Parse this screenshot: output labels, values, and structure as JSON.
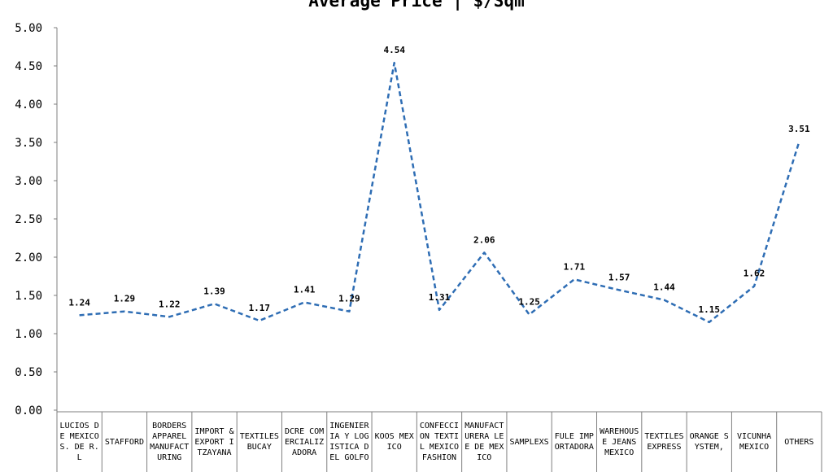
{
  "chart_data": {
    "type": "line",
    "title": "Average Price | $/Sqm",
    "xlabel": "",
    "ylabel": "",
    "ylim": [
      0,
      5
    ],
    "yticks": [
      "0.00",
      "0.50",
      "1.00",
      "1.50",
      "2.00",
      "2.50",
      "3.00",
      "3.50",
      "4.00",
      "4.50",
      "5.00"
    ],
    "grid": false,
    "legend": "none",
    "line_color": "#2e6db4",
    "line_style": "dashed",
    "categories": [
      "LUCIOS DE MEXICO S. DE R.L",
      "STAFFORD",
      "BORDERS APPAREL MANUFACTURING",
      "IMPORT & EXPORT ITZAYANA",
      "TEXTILES BUCAY",
      "DCRE COMERCIALIZADORA",
      "INGENIERIA Y LOGISTICA DEL GOLFO",
      "KOOS MEXICO",
      "CONFECCION TEXTIL MEXICO FASHION",
      "MANUFACTURERA LEE DE MEXICO",
      "SAMPLEXS",
      "FULE IMPORTADORA",
      "WAREHOUSE JEANS MEXICO",
      "TEXTILES EXPRESS",
      "ORANGE SYSTEM,",
      "VICUNHA MEXICO",
      "OTHERS"
    ],
    "values": [
      1.24,
      1.29,
      1.22,
      1.39,
      1.17,
      1.41,
      1.29,
      4.54,
      1.31,
      2.06,
      1.25,
      1.71,
      1.57,
      1.44,
      1.15,
      1.62,
      3.51
    ],
    "data_labels": [
      "1.24",
      "1.29",
      "1.22",
      "1.39",
      "1.17",
      "1.41",
      "1.29",
      "4.54",
      "1.31",
      "2.06",
      "1.25",
      "1.71",
      "1.57",
      "1.44",
      "1.15",
      "1.62",
      "3.51"
    ]
  }
}
